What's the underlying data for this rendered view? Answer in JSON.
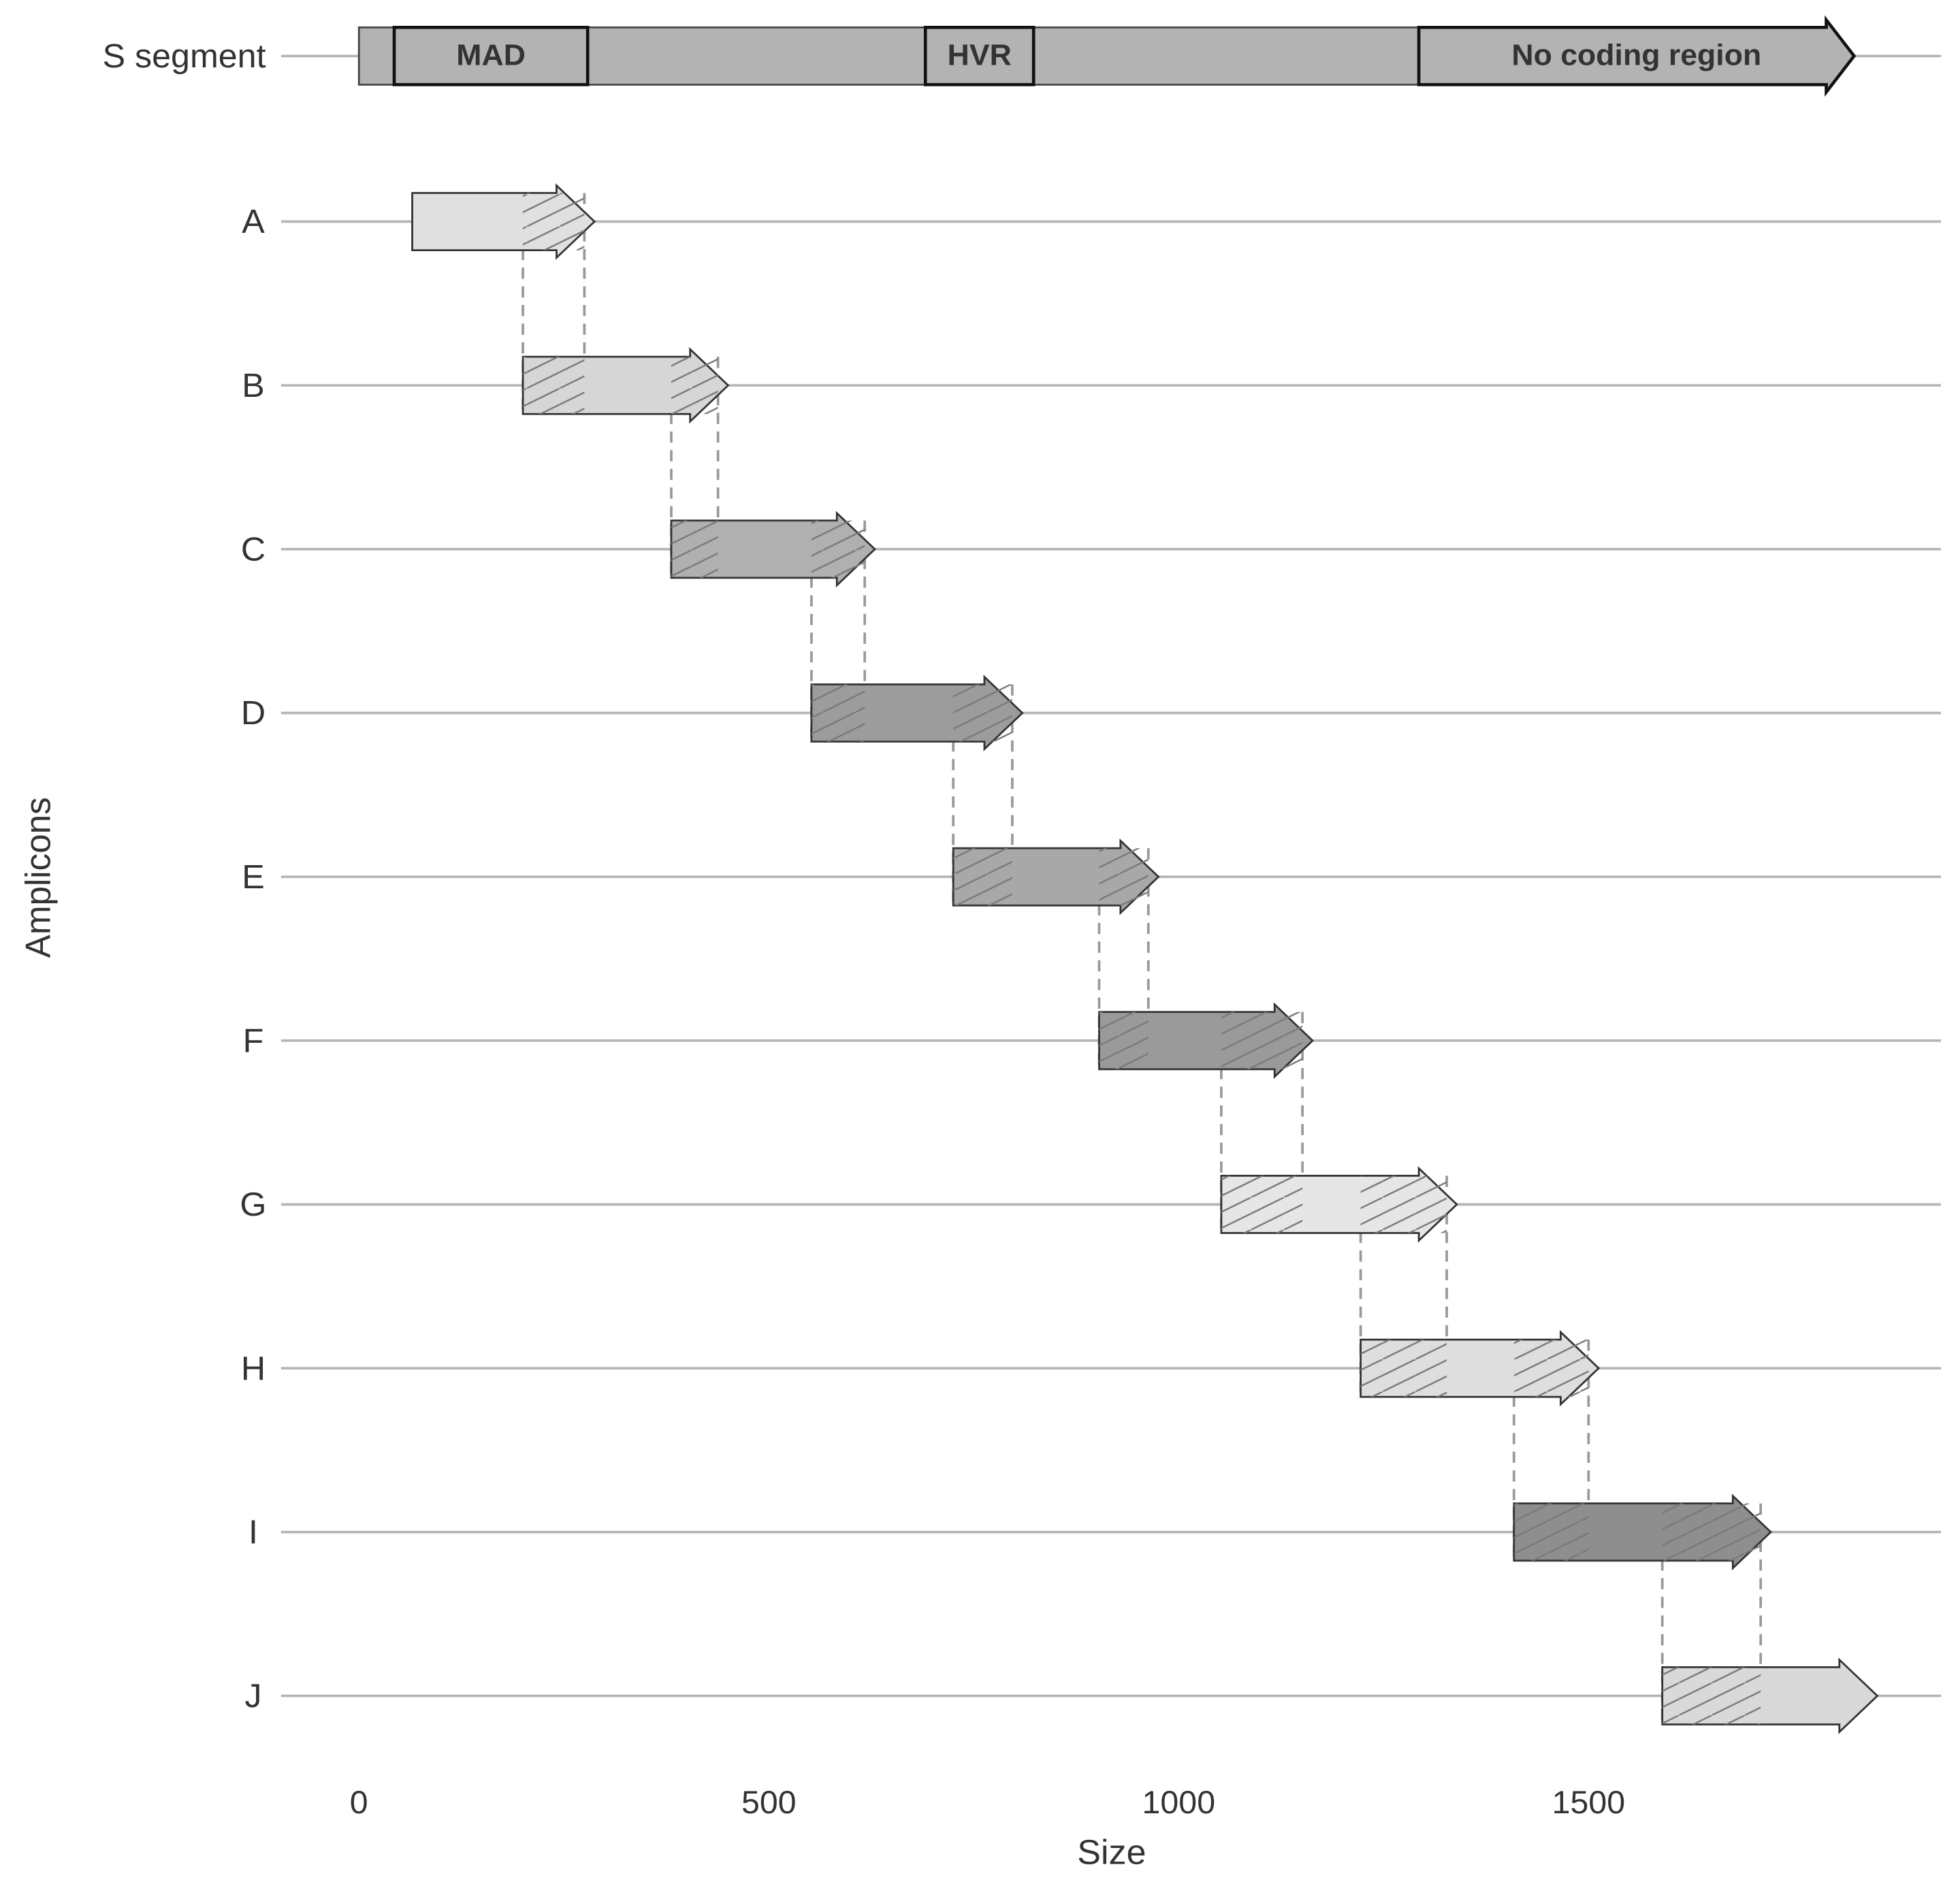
{
  "chart_data": {
    "type": "range",
    "x_label": "Size",
    "y_label": "Amplicons",
    "xlim": [
      -95,
      1930
    ],
    "xticks": [
      0,
      500,
      1000,
      1500
    ],
    "segment": {
      "name": "S segment",
      "start": 0,
      "end": 1824,
      "color": "#b3b3b3",
      "regions": [
        {
          "label": "MAD",
          "start": 43,
          "end": 279
        },
        {
          "label": "HVR",
          "start": 691,
          "end": 823
        },
        {
          "label": "No coding region",
          "start": 1293,
          "end": 1824
        }
      ]
    },
    "categories": [
      "A",
      "B",
      "C",
      "D",
      "E",
      "F",
      "G",
      "H",
      "I",
      "J"
    ],
    "starts": [
      65,
      200,
      381,
      552,
      725,
      903,
      1052,
      1222,
      1409,
      1590
    ],
    "ends": [
      275,
      438,
      617,
      797,
      963,
      1151,
      1327,
      1500,
      1710,
      1840
    ],
    "colors": [
      "#e0e0e0",
      "#d6d6d6",
      "#b0b0b0",
      "#9c9c9c",
      "#a8a8a8",
      "#9a9a9a",
      "#e6e6e6",
      "#dedede",
      "#8e8e8e",
      "#d9d9d9"
    ],
    "grid": true
  }
}
